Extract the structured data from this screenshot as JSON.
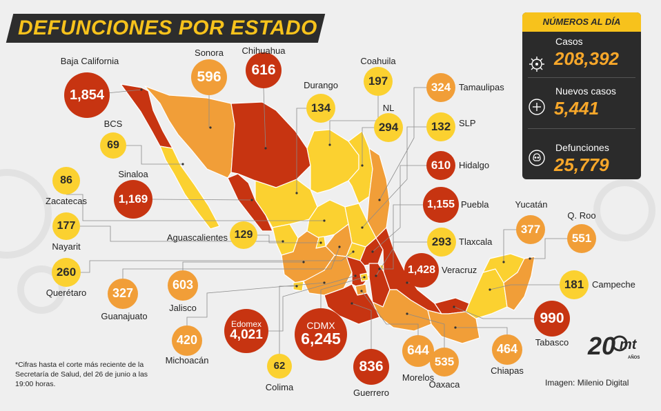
{
  "title": "DEFUNCIONES POR ESTADO",
  "colors": {
    "dark_red": "#c73411",
    "orange": "#f19e38",
    "yellow": "#fbd130",
    "panel_bg": "#2b2b2b",
    "accent_yellow": "#f7c21c",
    "accent_orange": "#f7a72a"
  },
  "panel": {
    "header": "NÚMEROS AL DÍA",
    "stats": [
      {
        "icon": "virus-icon",
        "label": "Casos",
        "value": "208,392"
      },
      {
        "icon": "plus-icon",
        "label": "Nuevos casos",
        "value": "5,441"
      },
      {
        "icon": "skull-icon",
        "label": "Defunciones",
        "value": "25,779"
      }
    ]
  },
  "states": [
    {
      "name": "Baja California",
      "value": "1,854",
      "level": "dark_red"
    },
    {
      "name": "Sonora",
      "value": "596",
      "level": "orange"
    },
    {
      "name": "Chihuahua",
      "value": "616",
      "level": "dark_red"
    },
    {
      "name": "Coahuila",
      "value": "197",
      "level": "yellow"
    },
    {
      "name": "Durango",
      "value": "134",
      "level": "yellow"
    },
    {
      "name": "NL",
      "value": "294",
      "level": "yellow"
    },
    {
      "name": "Tamaulipas",
      "value": "324",
      "level": "orange"
    },
    {
      "name": "SLP",
      "value": "132",
      "level": "yellow"
    },
    {
      "name": "BCS",
      "value": "69",
      "level": "yellow"
    },
    {
      "name": "Sinaloa",
      "value": "1,169",
      "level": "dark_red"
    },
    {
      "name": "Zacatecas",
      "value": "86",
      "level": "yellow"
    },
    {
      "name": "Hidalgo",
      "value": "610",
      "level": "dark_red"
    },
    {
      "name": "Puebla",
      "value": "1,155",
      "level": "dark_red"
    },
    {
      "name": "Nayarit",
      "value": "177",
      "level": "yellow"
    },
    {
      "name": "Aguascalientes",
      "value": "129",
      "level": "yellow"
    },
    {
      "name": "Tlaxcala",
      "value": "293",
      "level": "yellow"
    },
    {
      "name": "Yucatán",
      "value": "377",
      "level": "orange"
    },
    {
      "name": "Q. Roo",
      "value": "551",
      "level": "orange"
    },
    {
      "name": "Querétaro",
      "value": "260",
      "level": "yellow"
    },
    {
      "name": "Veracruz",
      "value": "1,428",
      "level": "dark_red"
    },
    {
      "name": "Campeche",
      "value": "181",
      "level": "yellow"
    },
    {
      "name": "Guanajuato",
      "value": "327",
      "level": "orange"
    },
    {
      "name": "Jalisco",
      "value": "603",
      "level": "orange"
    },
    {
      "name": "Edomex",
      "value": "4,021",
      "level": "dark_red"
    },
    {
      "name": "CDMX",
      "value": "6,245",
      "level": "dark_red"
    },
    {
      "name": "Tabasco",
      "value": "990",
      "level": "dark_red"
    },
    {
      "name": "Michoacán",
      "value": "420",
      "level": "orange"
    },
    {
      "name": "Morelos",
      "value": "644",
      "level": "orange"
    },
    {
      "name": "Oaxaca",
      "value": "535",
      "level": "orange"
    },
    {
      "name": "Chiapas",
      "value": "464",
      "level": "orange"
    },
    {
      "name": "Colima",
      "value": "62",
      "level": "yellow"
    },
    {
      "name": "Guerrero",
      "value": "836",
      "level": "dark_red"
    }
  ],
  "footnote": "*Cifras hasta el corte más reciente de la Secretaría de Salud, del 26 de junio a las 19:00 horas.",
  "credit": "Imagen: Milenio Digital",
  "logo": {
    "number": "20",
    "brand": "mt",
    "sub": "AÑOS"
  }
}
